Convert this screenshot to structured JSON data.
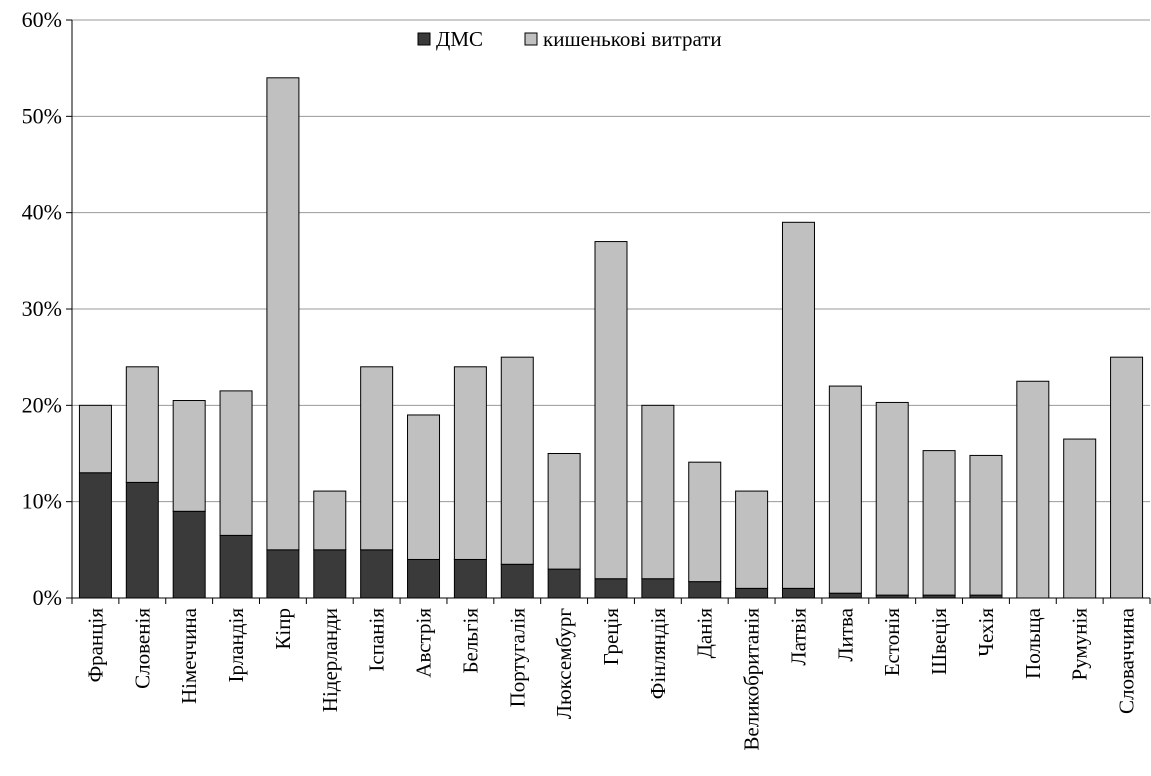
{
  "chart_data": {
    "type": "bar",
    "stacked": true,
    "title": "",
    "xlabel": "",
    "ylabel": "",
    "ylim": [
      0,
      60
    ],
    "yticks": [
      0,
      10,
      20,
      30,
      40,
      50,
      60
    ],
    "ytick_labels": [
      "0%",
      "10%",
      "20%",
      "30%",
      "40%",
      "50%",
      "60%"
    ],
    "grid": true,
    "legend_position": "top-center",
    "categories": [
      "Франція",
      "Словенія",
      "Німеччина",
      "Ірландія",
      "Кіпр",
      "Нідерланди",
      "Іспанія",
      "Австрія",
      "Бельгія",
      "Португалія",
      "Люксембург",
      "Греція",
      "Фінляндія",
      "Данія",
      "Великобританія",
      "Латвія",
      "Литва",
      "Естонія",
      "Швеція",
      "Чехія",
      "Польща",
      "Румунія",
      "Словаччина"
    ],
    "series": [
      {
        "name": "ДМС",
        "color": "#3a3a3a",
        "values": [
          13,
          12,
          9,
          6.5,
          5,
          5,
          5,
          4,
          4,
          3.5,
          3,
          2,
          2,
          1.7,
          1,
          1,
          0.5,
          0.3,
          0.3,
          0.3,
          0,
          0,
          0
        ]
      },
      {
        "name": "кишенькові витрати",
        "color": "#c0c0c0",
        "values": [
          7,
          12,
          11.5,
          15,
          49,
          6.1,
          19,
          15,
          20,
          21.5,
          12,
          35,
          18,
          12.4,
          10.1,
          38,
          21.5,
          20,
          15,
          14.5,
          22.5,
          16.5,
          25
        ]
      }
    ]
  }
}
